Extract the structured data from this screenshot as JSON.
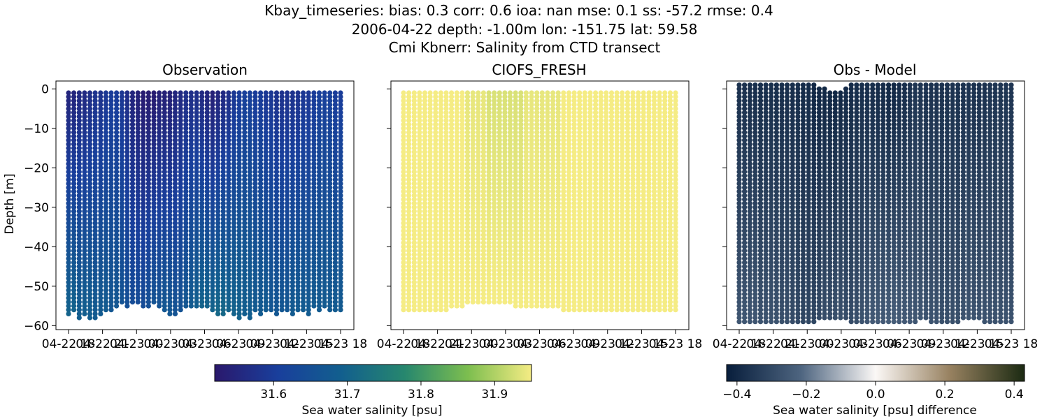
{
  "figure": {
    "title_lines": [
      "Kbay_timeseries: bias: 0.3  corr: 0.6  ioa: nan  mse: 0.1  ss: -57.2  rmse: 0.4",
      "2006-04-22 depth: -1.00m lon: -151.75 lat: 59.58",
      "Cmi Kbnerr: Salinity from CTD transect"
    ]
  },
  "chart_data": [
    {
      "type": "scatter",
      "title": "Observation",
      "ylabel": "Depth [m]",
      "xlabel": "",
      "ylim": [
        -61,
        2
      ],
      "x_tick_labels": [
        "04-22 18",
        "04-22 21",
        "04-23 00",
        "04-23 03",
        "04-23 06",
        "04-23 09",
        "04-23 12",
        "04-23 15",
        "04-23 18"
      ],
      "y_ticks": [
        0,
        -10,
        -20,
        -30,
        -40,
        -50,
        -60
      ],
      "y_tick_labels": [
        "0",
        "−10",
        "−20",
        "−30",
        "−40",
        "−50",
        "−60"
      ],
      "grid": false,
      "colormap": "haline",
      "color_range": [
        31.52,
        31.95
      ],
      "profiles": {
        "count": 52,
        "depth_step_m": 1,
        "top_depth_m": -1,
        "bottom_depths_m": [
          -57,
          -56,
          -58,
          -57,
          -58,
          -58,
          -57,
          -56,
          -56,
          -55,
          -54,
          -55,
          -54,
          -54,
          -55,
          -55,
          -54,
          -55,
          -56,
          -57,
          -57,
          -56,
          -55,
          -55,
          -55,
          -55,
          -55,
          -56,
          -57,
          -57,
          -56,
          -57,
          -58,
          -57,
          -58,
          -56,
          -57,
          -56,
          -56,
          -57,
          -56,
          -56,
          -57,
          -56,
          -56,
          -57,
          -55,
          -56,
          -55,
          -56,
          -56,
          -56
        ],
        "surface_salinity": [
          31.55,
          31.55,
          31.56,
          31.56,
          31.57,
          31.58,
          31.58,
          31.59,
          31.6,
          31.6,
          31.59,
          31.57,
          31.55,
          31.54,
          31.53,
          31.53,
          31.53,
          31.54,
          31.54,
          31.54,
          31.55,
          31.56,
          31.57,
          31.57,
          31.57,
          31.56,
          31.55,
          31.54,
          31.55,
          31.56,
          31.57,
          31.59,
          31.6,
          31.61,
          31.61,
          31.6,
          31.6,
          31.59,
          31.59,
          31.58,
          31.58,
          31.58,
          31.58,
          31.58,
          31.59,
          31.59,
          31.6,
          31.61,
          31.61,
          31.61,
          31.6,
          31.6
        ],
        "bottom_salinity": [
          31.7,
          31.7,
          31.69,
          31.69,
          31.69,
          31.68,
          31.68,
          31.68,
          31.67,
          31.67,
          31.66,
          31.65,
          31.64,
          31.64,
          31.64,
          31.65,
          31.66,
          31.66,
          31.67,
          31.67,
          31.66,
          31.66,
          31.67,
          31.68,
          31.69,
          31.7,
          31.7,
          31.7,
          31.71,
          31.71,
          31.7,
          31.7,
          31.7,
          31.69,
          31.69,
          31.68,
          31.68,
          31.68,
          31.67,
          31.67,
          31.67,
          31.67,
          31.68,
          31.68,
          31.68,
          31.68,
          31.68,
          31.68,
          31.68,
          31.68,
          31.68,
          31.68
        ]
      },
      "colorbar": {
        "label": "Sea water salinity [psu]",
        "ticks": [
          31.6,
          31.7,
          31.8,
          31.9
        ],
        "tick_labels": [
          "31.6",
          "31.7",
          "31.8",
          "31.9"
        ]
      }
    },
    {
      "type": "scatter",
      "title": "CIOFS_FRESH",
      "xlabel": "",
      "ylim": [
        -61,
        2
      ],
      "x_tick_labels": [
        "04-22 18",
        "04-22 21",
        "04-23 00",
        "04-23 03",
        "04-23 06",
        "04-23 09",
        "04-23 12",
        "04-23 15",
        "04-23 18"
      ],
      "grid": false,
      "colormap": "haline",
      "color_range": [
        31.52,
        31.95
      ],
      "profiles": {
        "count": 52,
        "depth_step_m": 1,
        "top_depth_m": -1,
        "bottom_depths_m": [
          -56,
          -56,
          -56,
          -56,
          -56,
          -56,
          -56,
          -56,
          -56,
          -55,
          -55,
          -55,
          -54,
          -54,
          -54,
          -54,
          -54,
          -54,
          -54,
          -54,
          -54,
          -55,
          -55,
          -55,
          -55,
          -55,
          -55,
          -55,
          -55,
          -55,
          -56,
          -56,
          -56,
          -56,
          -56,
          -56,
          -56,
          -56,
          -56,
          -56,
          -56,
          -56,
          -56,
          -56,
          -56,
          -56,
          -56,
          -56,
          -56,
          -56,
          -56,
          -56
        ],
        "surface_salinity": [
          31.95,
          31.95,
          31.95,
          31.95,
          31.95,
          31.95,
          31.95,
          31.95,
          31.95,
          31.95,
          31.95,
          31.95,
          31.94,
          31.94,
          31.94,
          31.94,
          31.93,
          31.93,
          31.93,
          31.93,
          31.93,
          31.93,
          31.93,
          31.94,
          31.94,
          31.94,
          31.94,
          31.94,
          31.94,
          31.94,
          31.95,
          31.95,
          31.95,
          31.95,
          31.95,
          31.95,
          31.95,
          31.95,
          31.95,
          31.95,
          31.95,
          31.95,
          31.95,
          31.95,
          31.95,
          31.95,
          31.95,
          31.95,
          31.95,
          31.95,
          31.95,
          31.95
        ],
        "bottom_salinity": [
          31.95,
          31.95,
          31.95,
          31.95,
          31.95,
          31.95,
          31.95,
          31.95,
          31.95,
          31.95,
          31.95,
          31.95,
          31.95,
          31.95,
          31.95,
          31.95,
          31.95,
          31.95,
          31.95,
          31.95,
          31.95,
          31.95,
          31.95,
          31.95,
          31.95,
          31.95,
          31.95,
          31.95,
          31.95,
          31.95,
          31.95,
          31.95,
          31.95,
          31.95,
          31.95,
          31.95,
          31.95,
          31.95,
          31.95,
          31.95,
          31.95,
          31.95,
          31.95,
          31.95,
          31.95,
          31.95,
          31.95,
          31.95,
          31.95,
          31.95,
          31.95,
          31.95
        ]
      }
    },
    {
      "type": "scatter",
      "title": "Obs - Model",
      "xlabel": "",
      "ylim": [
        -61,
        2
      ],
      "x_tick_labels": [
        "04-22 18",
        "04-22 21",
        "04-23 00",
        "04-23 03",
        "04-23 06",
        "04-23 09",
        "04-23 12",
        "04-23 15",
        "04-23 18"
      ],
      "grid": false,
      "colormap": "diff",
      "color_range": [
        -0.43,
        0.43
      ],
      "profiles": {
        "count": 52,
        "depth_step_m": 1,
        "top_depth_m": 1,
        "bottom_depths_m": [
          -59,
          -59,
          -59,
          -59,
          -59,
          -59,
          -59,
          -59,
          -59,
          -59,
          -59,
          -59,
          -59,
          -59,
          -59,
          -58,
          -58,
          -58,
          -58,
          -58,
          -58,
          -59,
          -59,
          -59,
          -59,
          -59,
          -59,
          -59,
          -59,
          -59,
          -59,
          -59,
          -59,
          -59,
          -58,
          -58,
          -59,
          -59,
          -59,
          -59,
          -59,
          -59,
          -58,
          -58,
          -58,
          -58,
          -59,
          -59,
          -59,
          -59,
          -59,
          -59
        ],
        "top_depths_m": [
          1,
          1,
          1,
          1,
          1,
          1,
          1,
          1,
          1,
          1,
          1,
          1,
          1,
          1,
          1,
          0,
          0,
          -1,
          -1,
          -1,
          0,
          1,
          1,
          1,
          1,
          1,
          1,
          1,
          1,
          1,
          1,
          1,
          1,
          1,
          1,
          1,
          1,
          1,
          1,
          1,
          1,
          1,
          1,
          1,
          1,
          1,
          1,
          1,
          1,
          1,
          1,
          1
        ],
        "surface_salinity": [
          -0.37,
          -0.37,
          -0.38,
          -0.38,
          -0.38,
          -0.38,
          -0.38,
          -0.38,
          -0.38,
          -0.38,
          -0.38,
          -0.38,
          -0.39,
          -0.39,
          -0.4,
          -0.4,
          -0.4,
          -0.4,
          -0.4,
          -0.4,
          -0.39,
          -0.39,
          -0.38,
          -0.38,
          -0.38,
          -0.38,
          -0.39,
          -0.39,
          -0.4,
          -0.4,
          -0.39,
          -0.38,
          -0.37,
          -0.36,
          -0.36,
          -0.37,
          -0.37,
          -0.37,
          -0.37,
          -0.37,
          -0.37,
          -0.37,
          -0.37,
          -0.37,
          -0.37,
          -0.37,
          -0.37,
          -0.36,
          -0.36,
          -0.36,
          -0.36,
          -0.36
        ],
        "bottom_salinity": [
          -0.26,
          -0.26,
          -0.26,
          -0.26,
          -0.27,
          -0.27,
          -0.27,
          -0.27,
          -0.28,
          -0.28,
          -0.29,
          -0.3,
          -0.31,
          -0.31,
          -0.31,
          -0.3,
          -0.29,
          -0.29,
          -0.28,
          -0.28,
          -0.29,
          -0.29,
          -0.28,
          -0.27,
          -0.26,
          -0.25,
          -0.25,
          -0.25,
          -0.24,
          -0.24,
          -0.25,
          -0.25,
          -0.25,
          -0.26,
          -0.26,
          -0.27,
          -0.27,
          -0.27,
          -0.28,
          -0.28,
          -0.28,
          -0.28,
          -0.27,
          -0.27,
          -0.27,
          -0.27,
          -0.27,
          -0.27,
          -0.27,
          -0.27,
          -0.27,
          -0.27
        ]
      },
      "colorbar": {
        "label": "Sea water salinity [psu] difference",
        "ticks": [
          -0.4,
          -0.2,
          0.0,
          0.2,
          0.4
        ],
        "tick_labels": [
          "−0.4",
          "−0.2",
          "0.0",
          "0.2",
          "0.4"
        ]
      }
    }
  ]
}
